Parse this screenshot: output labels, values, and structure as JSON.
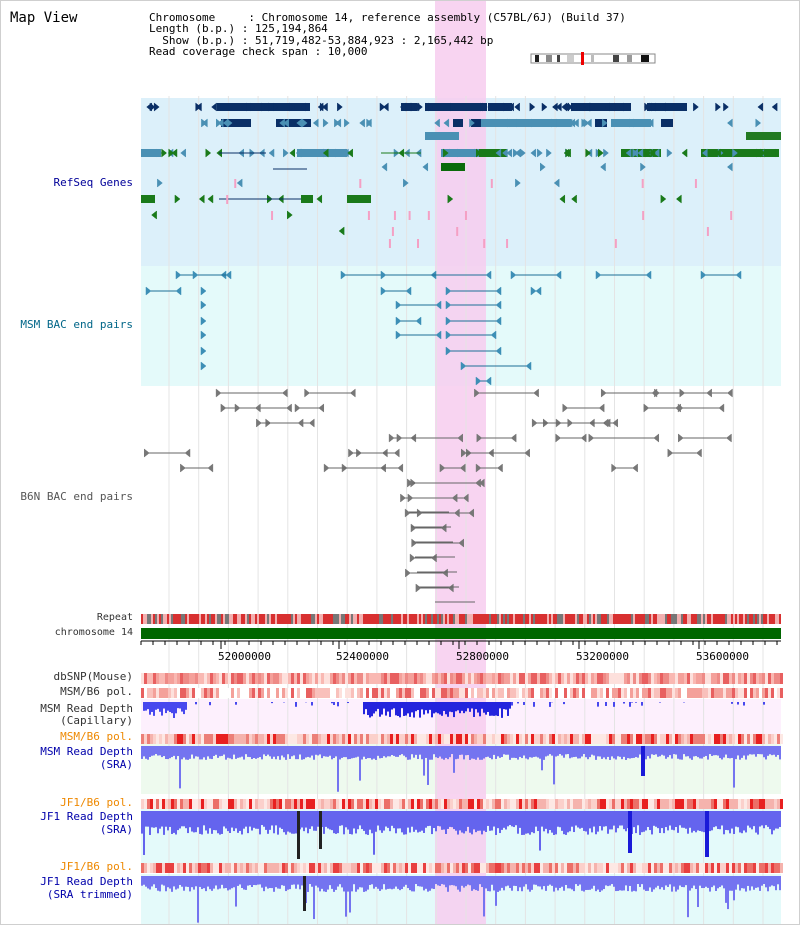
{
  "title": "Map View",
  "info": {
    "chromosome_line": "Chromosome     : Chromosome 14, reference assembly (C57BL/6J) (Build 37)",
    "length_line": "Length (b.p.) : 125,194,864",
    "show_line": "  Show (b.p.) : 51,719,482-53,884,923 : 2,165,442 bp",
    "coverage_line": "Read coverage check span : 10,000"
  },
  "tracks": {
    "refseq": "RefSeq Genes",
    "msm_bac": "MSM BAC end pairs",
    "b6n_bac": "B6N BAC end pairs",
    "repeat": "Repeat",
    "chromosome": "chromosome 14",
    "dbsnp": "dbSNP(Mouse)",
    "msm_b6_pol_1": "MSM/B6 pol.",
    "msm_depth_cap_1": "MSM Read Depth",
    "msm_depth_cap_2": "(Capillary)",
    "msm_b6_pol_2": "MSM/B6 pol.",
    "msm_depth_sra_1": "MSM Read Depth",
    "msm_depth_sra_2": "(SRA)",
    "jf1_b6_pol_1": "JF1/B6 pol.",
    "jf1_depth_sra_1": "JF1 Read Depth",
    "jf1_depth_sra_2": "(SRA)",
    "jf1_b6_pol_2": "JF1/B6 pol.",
    "jf1_depth_trim_1": "JF1 Read Depth",
    "jf1_depth_trim_2": "(SRA trimmed)"
  },
  "axis": {
    "ticks": [
      "52000000",
      "52400000",
      "52800000",
      "53200000",
      "53600000"
    ]
  },
  "colors": {
    "refseq_label": "#000099",
    "msm_label": "#006688",
    "b6n_label": "#555555",
    "orange_label": "#ee8800",
    "blue_label": "#0000aa",
    "highlight": "#f7cdef",
    "chromosome_bar": "#006600"
  }
}
